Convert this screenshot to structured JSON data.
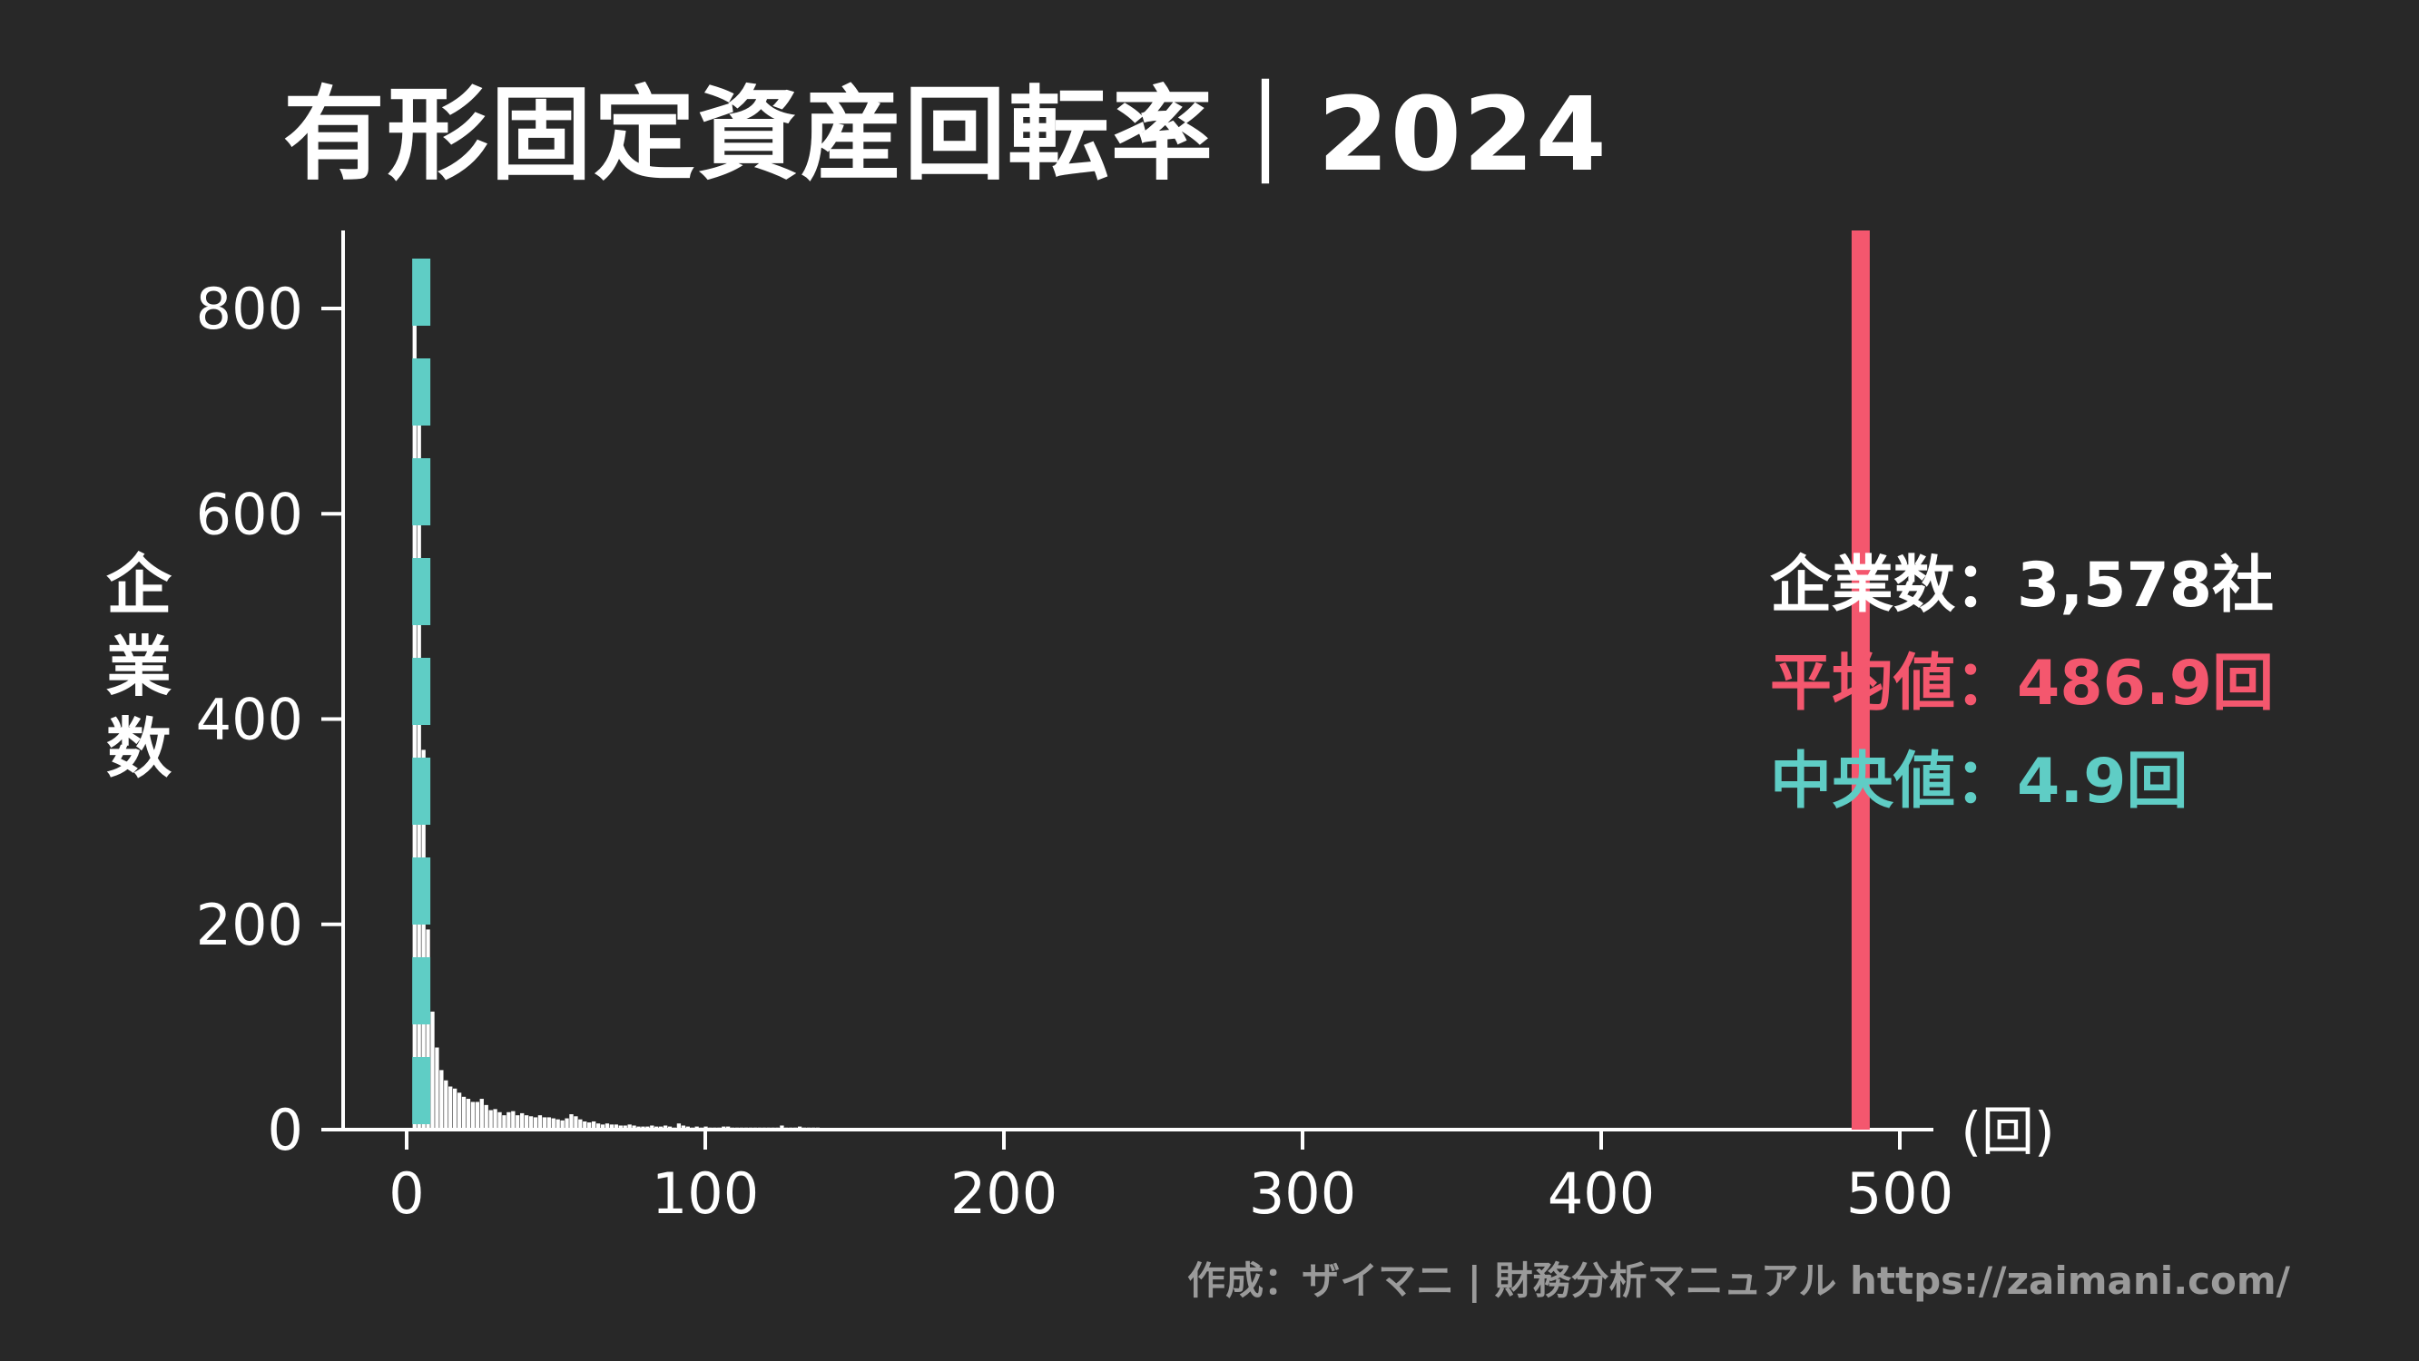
{
  "title": "有形固定資産回転率｜2024",
  "ylabel_chars": [
    "企",
    "業",
    "数"
  ],
  "stats": {
    "count_label": "企業数",
    "sep": "：",
    "count_value": "3,578社",
    "mean_label": "平均値",
    "mean_value": "486.9回",
    "median_label": "中央値",
    "median_value": "4.9回"
  },
  "credit": "作成：ザイマニ | 財務分析マニュアル https://zaimani.com/",
  "colors": {
    "background": "#282828",
    "bars": "#ffffff",
    "mean": "#f4576e",
    "median": "#5fcdc5",
    "credit": "#9a9a9a"
  },
  "chart_data": {
    "type": "bar",
    "subtype": "histogram",
    "xlim": [
      -25,
      510
    ],
    "ylim": [
      0,
      870
    ],
    "x_ticks": [
      0,
      100,
      200,
      300,
      400,
      500
    ],
    "y_ticks": [
      0,
      200,
      400,
      600,
      800
    ],
    "x_unit_label": "(回)",
    "bin_width": 1.5,
    "bins_start": 2,
    "values": [
      830,
      690,
      370,
      195,
      115,
      80,
      58,
      48,
      42,
      40,
      36,
      32,
      30,
      27,
      27,
      30,
      24,
      19,
      20,
      17,
      14,
      17,
      18,
      14,
      16,
      14,
      13,
      12,
      14,
      12,
      12,
      11,
      10,
      9,
      11,
      15,
      13,
      10,
      8,
      7,
      8,
      6,
      5,
      6,
      5,
      5,
      4,
      4,
      5,
      4,
      3,
      3,
      3,
      4,
      3,
      3,
      4,
      3,
      2,
      6,
      4,
      3,
      2,
      3,
      2,
      3,
      2,
      2,
      2,
      3,
      3,
      2,
      2,
      2,
      2,
      2,
      2,
      2,
      2,
      2,
      2,
      2,
      4,
      2,
      2,
      2,
      3,
      2,
      2,
      2,
      2
    ],
    "mean": 486.9,
    "median": 4.9
  }
}
